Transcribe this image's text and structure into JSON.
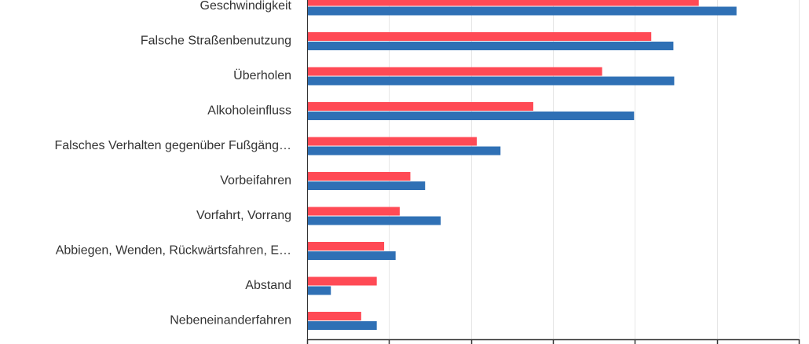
{
  "chart_data": {
    "type": "bar",
    "orientation": "horizontal",
    "title": "",
    "xlabel": "",
    "ylabel": "",
    "categories": [
      "Geschwindigkeit",
      "Falsche Straßenbenutzung",
      "Überholen",
      "Alkoholeinfluss",
      "Falsches Verhalten gegenüber Fußgäng…",
      "Vorbeifahren",
      "Vorfahrt, Vorrang",
      "Abbiegen, Wenden, Rückwärtsfahren, E…",
      "Abstand",
      "Nebeneinanderfahren"
    ],
    "series": [
      {
        "color": "#ff4a55",
        "values": [
          478,
          420,
          360,
          276,
          207,
          126,
          113,
          94,
          85,
          66
        ]
      },
      {
        "color": "#2f70b5",
        "values": [
          524,
          447,
          448,
          399,
          236,
          144,
          163,
          108,
          29,
          85
        ]
      }
    ],
    "xlim": [
      0,
      600
    ],
    "tick_step": 100,
    "grid": true,
    "legend": "none"
  }
}
